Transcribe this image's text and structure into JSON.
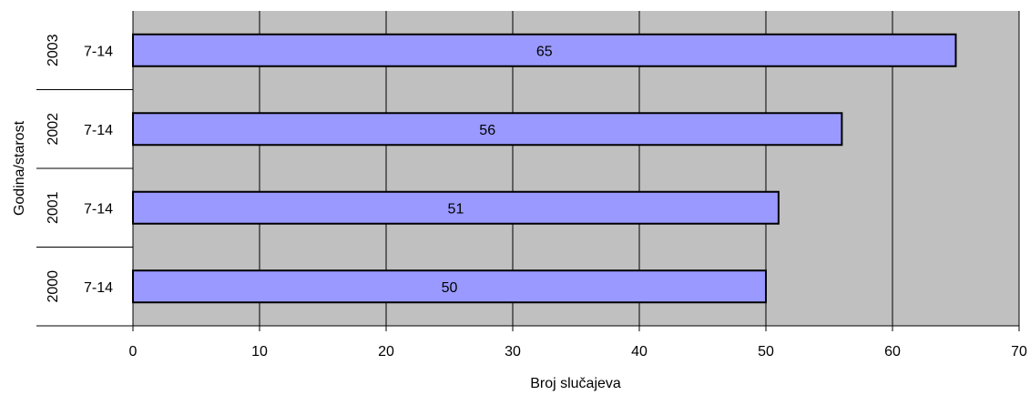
{
  "chart_data": {
    "type": "bar",
    "orientation": "horizontal",
    "title": "",
    "xlabel": "Broj slučajeva",
    "ylabel": "Godina/starost",
    "xlim": [
      0,
      70
    ],
    "x_ticks": [
      0,
      10,
      20,
      30,
      40,
      50,
      60,
      70
    ],
    "grid": true,
    "legend": "none",
    "categories": [
      {
        "year": "2003",
        "age": "7-14"
      },
      {
        "year": "2002",
        "age": "7-14"
      },
      {
        "year": "2001",
        "age": "7-14"
      },
      {
        "year": "2000",
        "age": "7-14"
      }
    ],
    "values": [
      65,
      56,
      51,
      50
    ],
    "data_labels": [
      "65",
      "56",
      "51",
      "50"
    ],
    "colors": {
      "bar_fill": "#9999ff",
      "bar_stroke": "#000000",
      "plot_background": "#c0c0c0",
      "gridline": "#000000"
    }
  }
}
